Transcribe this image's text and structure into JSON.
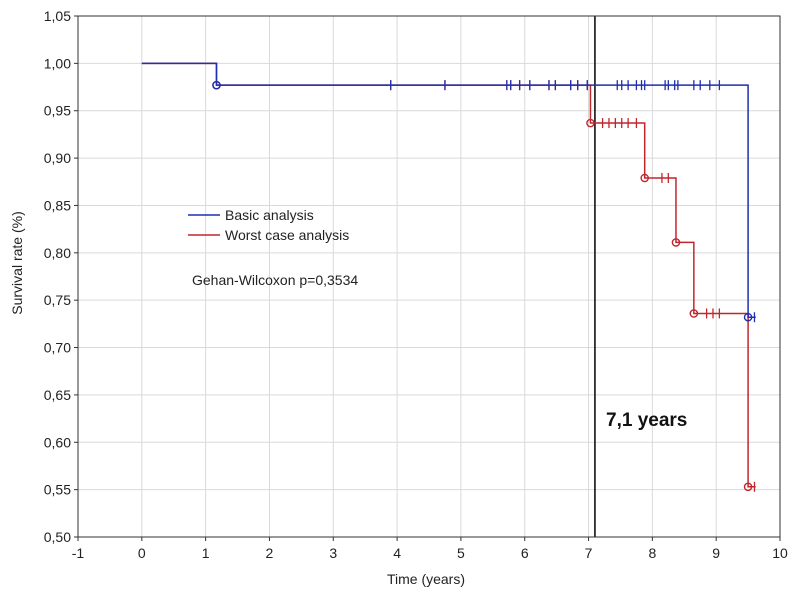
{
  "chart_data": {
    "type": "line",
    "subtype": "kaplan-meier-step",
    "title": "",
    "xlabel": "Time (years)",
    "ylabel": "Survival rate (%)",
    "xlim": [
      -1,
      10
    ],
    "ylim": [
      0.5,
      1.05
    ],
    "x_ticks": [
      -1,
      0,
      1,
      2,
      3,
      4,
      5,
      6,
      7,
      8,
      9,
      10
    ],
    "x_tick_labels": [
      "-1",
      "0",
      "1",
      "2",
      "3",
      "4",
      "5",
      "6",
      "7",
      "8",
      "9",
      "10"
    ],
    "y_ticks": [
      0.5,
      0.55,
      0.6,
      0.65,
      0.7,
      0.75,
      0.8,
      0.85,
      0.9,
      0.95,
      1.0,
      1.05
    ],
    "y_tick_labels": [
      "0,50",
      "0,55",
      "0,60",
      "0,65",
      "0,70",
      "0,75",
      "0,80",
      "0,85",
      "0,90",
      "0,95",
      "1,00",
      "1,05"
    ],
    "grid": true,
    "legend_position": "center-left",
    "series": [
      {
        "name": "Basic analysis",
        "color": "#1f2fb0",
        "steps": [
          [
            0,
            1.0
          ],
          [
            1.17,
            0.977
          ],
          [
            9.5,
            0.732
          ]
        ],
        "end_x": 9.62,
        "event_marks": [
          [
            1.17,
            0.977
          ],
          [
            9.5,
            0.732
          ]
        ],
        "censored": [
          3.9,
          4.75,
          5.72,
          5.78,
          5.92,
          6.08,
          6.38,
          6.48,
          6.72,
          6.83,
          6.98,
          7.45,
          7.52,
          7.62,
          7.75,
          7.83,
          7.88,
          8.2,
          8.25,
          8.35,
          8.4,
          8.65,
          8.75,
          8.9,
          9.05,
          9.6
        ]
      },
      {
        "name": "Worst case analysis",
        "color": "#c0272d",
        "steps": [
          [
            0,
            1.0
          ],
          [
            1.17,
            0.977
          ],
          [
            7.03,
            0.937
          ],
          [
            7.88,
            0.879
          ],
          [
            8.37,
            0.811
          ],
          [
            8.65,
            0.736
          ],
          [
            9.5,
            0.553
          ]
        ],
        "end_x": 9.62,
        "event_marks": [
          [
            1.17,
            0.977
          ],
          [
            7.03,
            0.937
          ],
          [
            7.88,
            0.879
          ],
          [
            8.37,
            0.811
          ],
          [
            8.65,
            0.736
          ],
          [
            9.5,
            0.553
          ]
        ],
        "censored": [
          3.9,
          4.75,
          5.72,
          5.78,
          5.92,
          6.08,
          6.38,
          6.48,
          6.72,
          6.83,
          6.98,
          7.22,
          7.32,
          7.42,
          7.52,
          7.62,
          7.75,
          8.15,
          8.25,
          8.85,
          8.95,
          9.05,
          9.6
        ]
      }
    ],
    "reference_line": {
      "x": 7.1,
      "label": "7,1 years",
      "color": "#111111"
    },
    "annotations": [
      {
        "text": "Gehan-Wilcoxon p=0,3534"
      }
    ]
  }
}
